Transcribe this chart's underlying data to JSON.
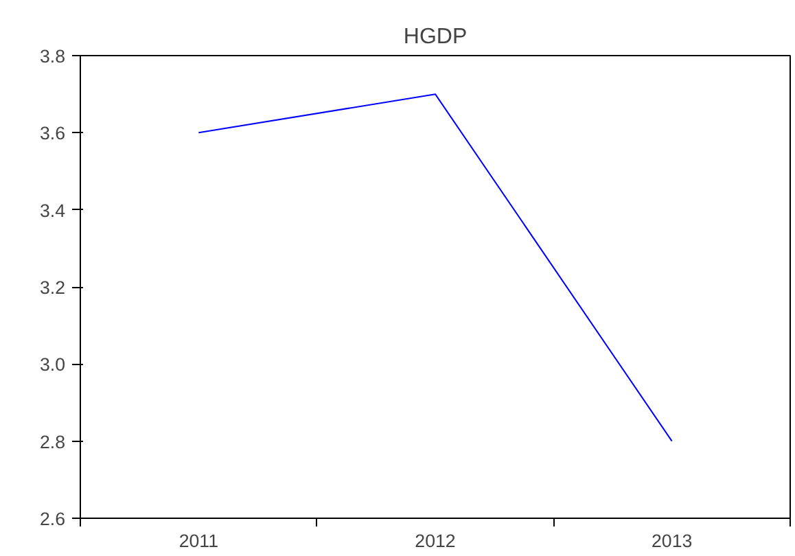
{
  "chart_data": {
    "type": "line",
    "title": "HGDP",
    "categories": [
      "2011",
      "2012",
      "2013"
    ],
    "series": [
      {
        "color": "#0000ff",
        "values": [
          3.6,
          3.7,
          2.8
        ]
      }
    ],
    "ylim": [
      2.6,
      3.8
    ],
    "yticks": [
      2.6,
      2.8,
      {
        "value": 3.0,
        "label": "3.0"
      },
      3.2,
      3.4,
      3.6,
      3.8
    ],
    "grid": false,
    "marker": "none",
    "line_style": "solid"
  }
}
